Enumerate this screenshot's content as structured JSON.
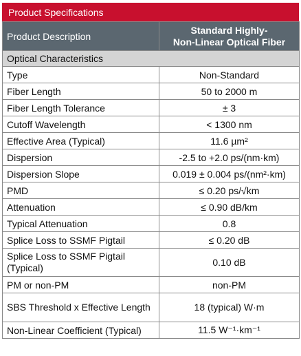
{
  "title": "Product Specifications",
  "header": {
    "label": "Product Description",
    "value": "Standard Highly-\nNon-Linear Optical Fiber",
    "value_line1": "Standard Highly-",
    "value_line2": "Non-Linear Optical Fiber"
  },
  "section": "Optical Characteristics",
  "rows": [
    {
      "label": "Type",
      "value": "Non-Standard"
    },
    {
      "label": "Fiber Length",
      "value": "50 to 2000 m"
    },
    {
      "label": "Fiber Length Tolerance",
      "value": "± 3"
    },
    {
      "label": "Cutoff Wavelength",
      "value": "< 1300 nm"
    },
    {
      "label": "Effective Area (Typical)",
      "value": "11.6 µm²"
    },
    {
      "label": "Dispersion",
      "value": "-2.5 to +2.0 ps/(nm·km)"
    },
    {
      "label": "Dispersion Slope",
      "value": "0.019 ± 0.004 ps/(nm²·km)"
    },
    {
      "label": "PMD",
      "value": "≤ 0.20 ps/√km"
    },
    {
      "label": "Attenuation",
      "value": "≤ 0.90 dB/km"
    },
    {
      "label": "Typical Attenuation",
      "value": "0.8"
    },
    {
      "label": "Splice Loss to SSMF Pigtail",
      "value": "≤ 0.20 dB"
    },
    {
      "label": "Splice Loss to SSMF Pigtail (Typical)",
      "value": "0.10 dB"
    },
    {
      "label": "PM or non-PM",
      "value": "non-PM"
    },
    {
      "label": "SBS Threshold x Effective Length",
      "value": "18 (typical) W·m"
    },
    {
      "label": "Non-Linear Coefficient (Typical)",
      "value": "11.5 W⁻¹·km⁻¹"
    }
  ]
}
